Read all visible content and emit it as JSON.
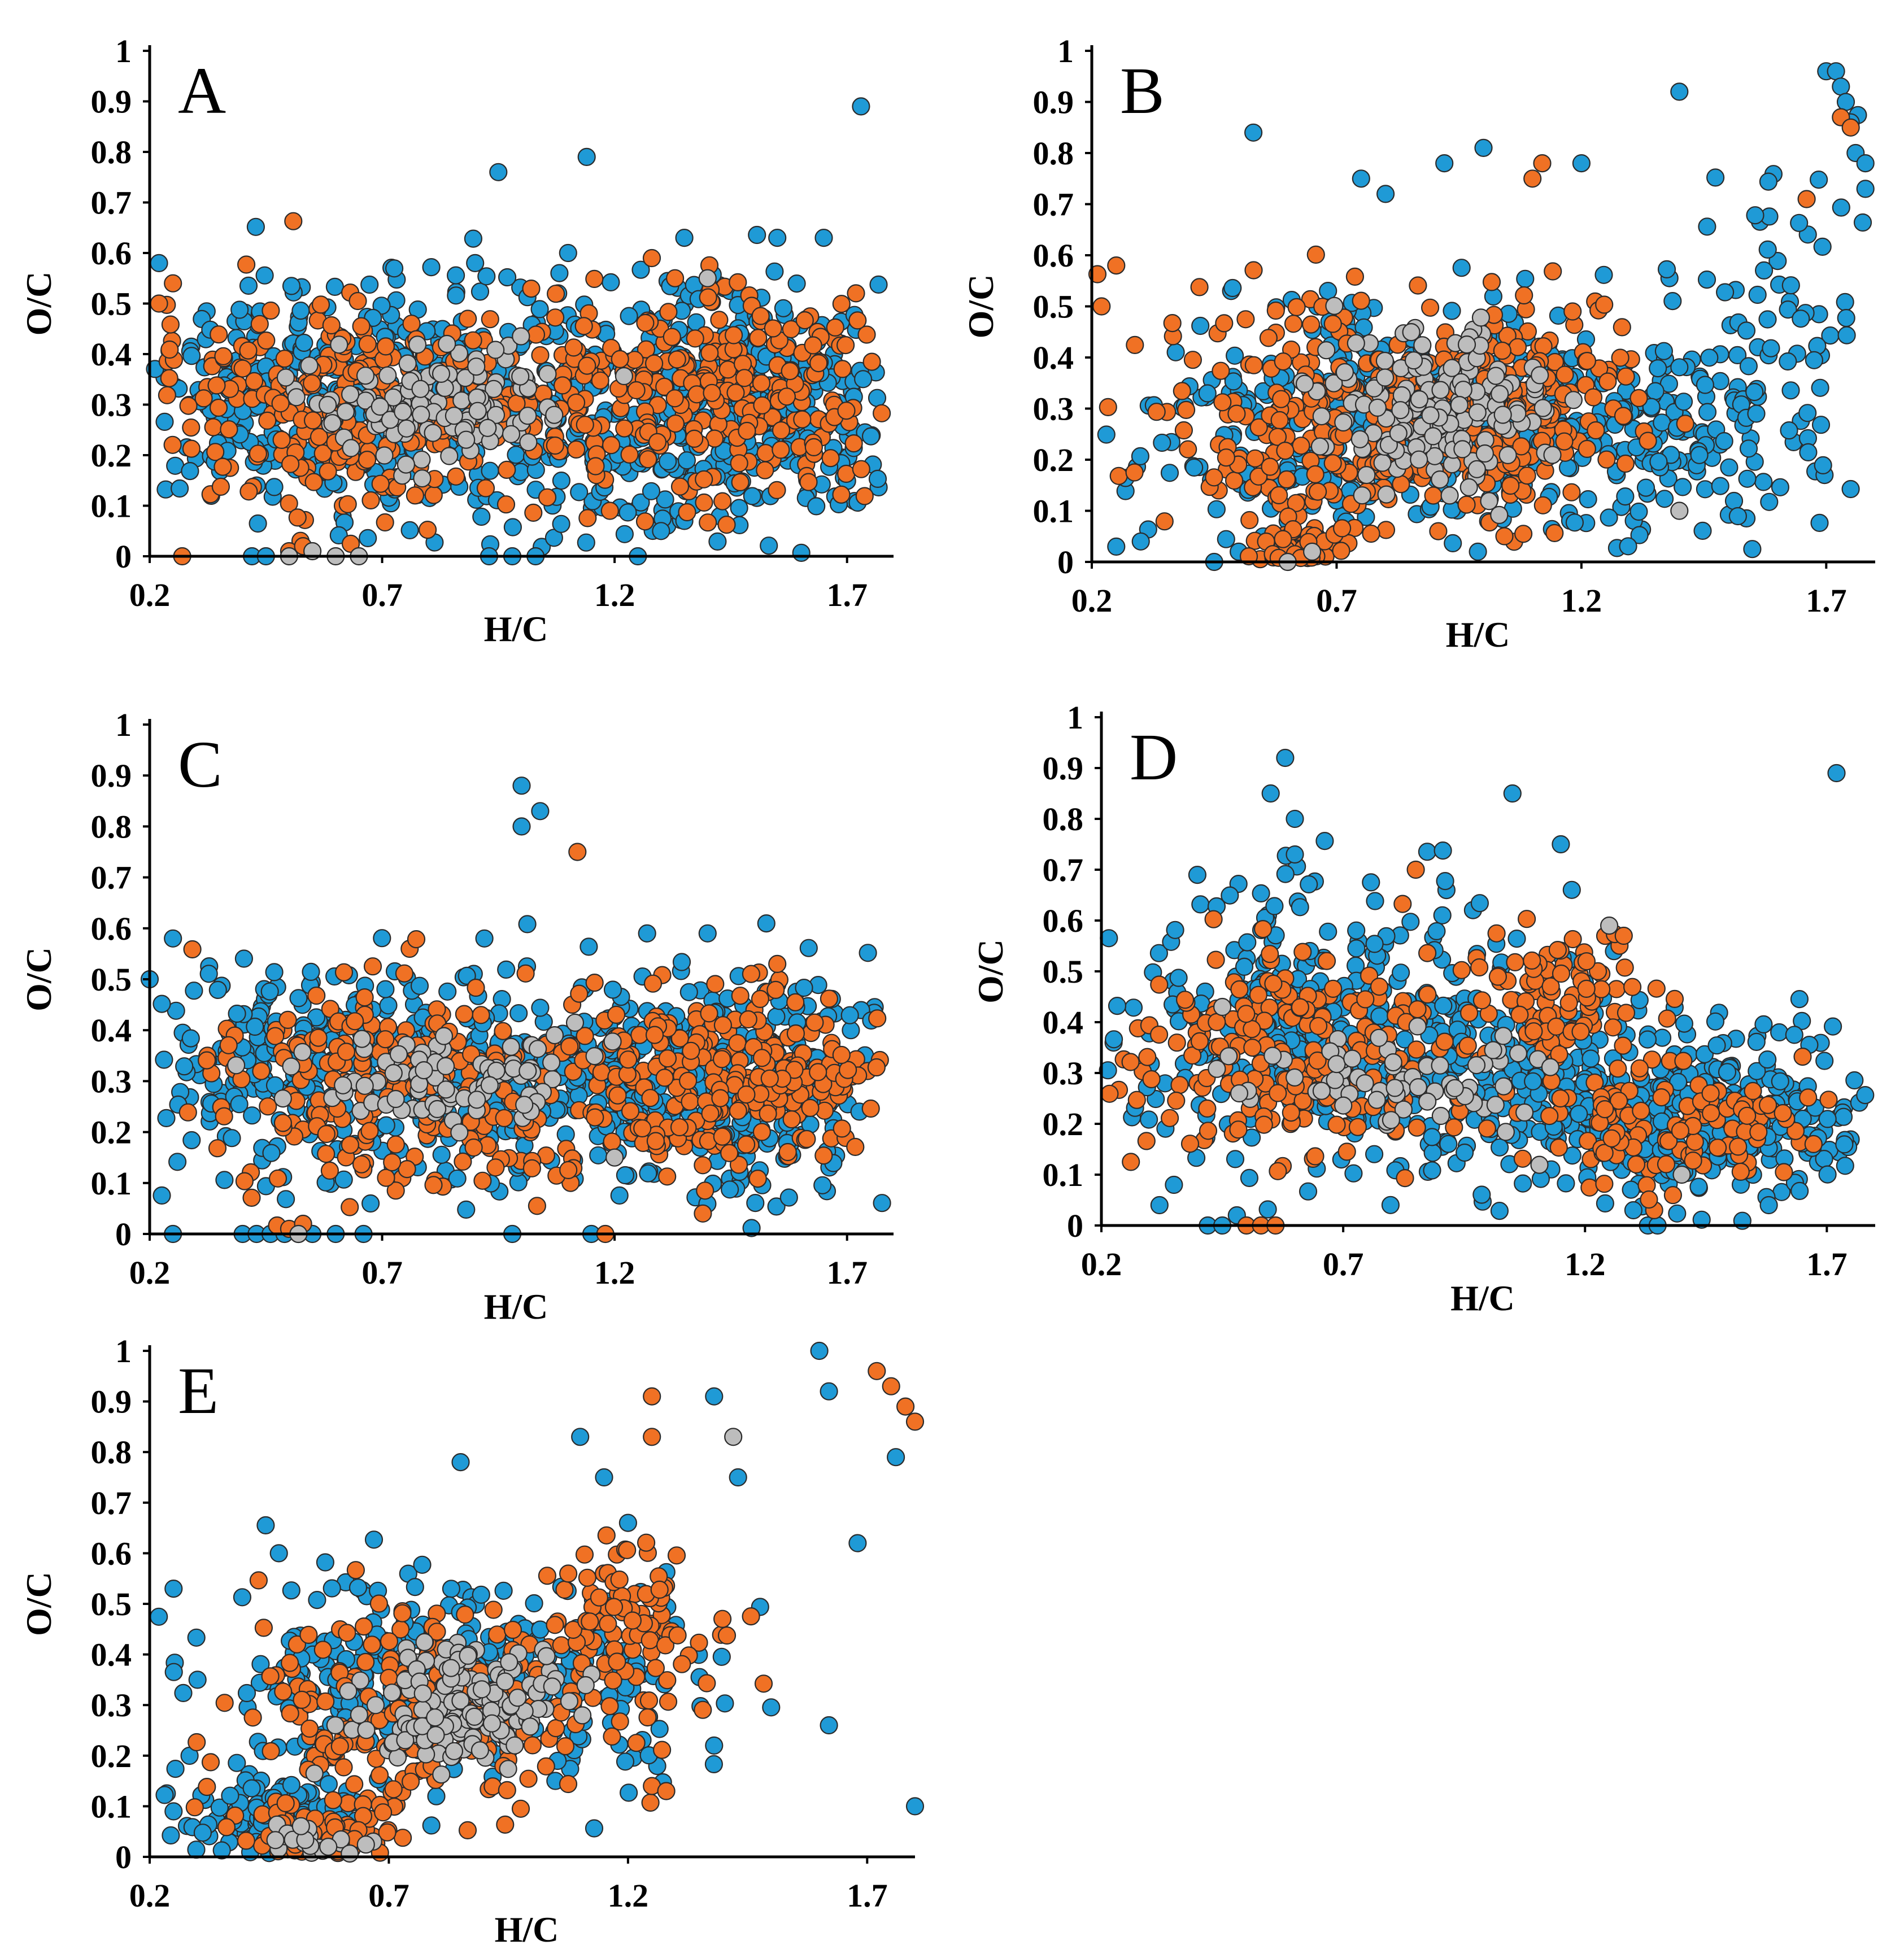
{
  "figure": {
    "colors": {
      "blue": "#1f9ad6",
      "orange": "#f07124",
      "gray": "#bdbdbd",
      "outline": "#2b2b2b",
      "axis": "#000000"
    }
  },
  "chart_data": [
    {
      "type": "scatter",
      "panel": "A",
      "xlabel": "H/C",
      "ylabel": "O/C",
      "xlim": [
        0.2,
        1.8
      ],
      "ylim": [
        0,
        1
      ],
      "xticks": [
        "0.2",
        "0.7",
        "1.2",
        "1.7"
      ],
      "yticks": [
        "0",
        "0.1",
        "0.2",
        "0.3",
        "0.4",
        "0.5",
        "0.6",
        "0.7",
        "0.8",
        "0.9",
        "1"
      ],
      "series": [
        {
          "name": "blue",
          "color": "#1f9ad6",
          "clusters": [
            {
              "cx": 0.55,
              "cy": 0.32,
              "sx": 0.22,
              "sy": 0.11,
              "n": 320
            },
            {
              "cx": 1.5,
              "cy": 0.3,
              "sx": 0.18,
              "sy": 0.12,
              "n": 340
            },
            {
              "cx": 1.05,
              "cy": 0.3,
              "sx": 0.25,
              "sy": 0.12,
              "n": 220
            }
          ],
          "points": [
            [
              1.73,
              0.89
            ],
            [
              0.95,
              0.76
            ],
            [
              1.14,
              0.79
            ],
            [
              1.35,
              0.63
            ],
            [
              1.55,
              0.63
            ],
            [
              1.65,
              0.63
            ],
            [
              0.22,
              0.58
            ],
            [
              0.9,
              0.58
            ],
            [
              1.1,
              0.6
            ],
            [
              1.3,
              0.05
            ],
            [
              1.35,
              0.07
            ],
            [
              0.93,
              0.0
            ],
            [
              0.98,
              0.0
            ],
            [
              1.03,
              0.0
            ],
            [
              1.25,
              0.0
            ],
            [
              0.42,
              0.0
            ],
            [
              0.45,
              0.0
            ]
          ]
        },
        {
          "name": "orange",
          "color": "#f07124",
          "clusters": [
            {
              "cx": 0.6,
              "cy": 0.29,
              "sx": 0.2,
              "sy": 0.1,
              "n": 240
            },
            {
              "cx": 1.45,
              "cy": 0.32,
              "sx": 0.18,
              "sy": 0.11,
              "n": 220
            },
            {
              "cx": 1.0,
              "cy": 0.3,
              "sx": 0.2,
              "sy": 0.1,
              "n": 120
            }
          ],
          "points": [
            [
              0.22,
              0.5
            ],
            [
              0.25,
              0.54
            ],
            [
              1.28,
              0.59
            ],
            [
              1.33,
              0.55
            ],
            [
              0.27,
              0.0
            ],
            [
              0.5,
              0.01
            ],
            [
              0.53,
              0.02
            ]
          ]
        },
        {
          "name": "gray",
          "color": "#bdbdbd",
          "clusters": [
            {
              "cx": 0.82,
              "cy": 0.3,
              "sx": 0.15,
              "sy": 0.06,
              "n": 140
            }
          ],
          "points": [
            [
              0.5,
              0.0
            ],
            [
              0.55,
              0.01
            ],
            [
              0.6,
              0.0
            ],
            [
              0.65,
              0.0
            ],
            [
              1.4,
              0.55
            ]
          ]
        }
      ]
    },
    {
      "type": "scatter",
      "panel": "B",
      "xlabel": "H/C",
      "ylabel": "O/C",
      "xlim": [
        0.2,
        1.8
      ],
      "ylim": [
        0,
        1
      ],
      "xticks": [
        "0.2",
        "0.7",
        "1.2",
        "1.7"
      ],
      "yticks": [
        "0",
        "0.1",
        "0.2",
        "0.3",
        "0.4",
        "0.5",
        "0.6",
        "0.7",
        "0.8",
        "0.9",
        "1"
      ],
      "series": [
        {
          "name": "blue",
          "color": "#1f9ad6",
          "clusters": [
            {
              "cx": 0.8,
              "cy": 0.28,
              "sx": 0.25,
              "sy": 0.11,
              "n": 380
            },
            {
              "cx": 1.25,
              "cy": 0.25,
              "sx": 0.2,
              "sy": 0.1,
              "n": 180
            },
            {
              "cx": 1.6,
              "cy": 0.45,
              "sx": 0.12,
              "sy": 0.18,
              "n": 80
            }
          ],
          "points": [
            [
              0.53,
              0.84
            ],
            [
              1.0,
              0.81
            ],
            [
              1.4,
              0.92
            ],
            [
              1.7,
              0.96
            ],
            [
              1.72,
              0.96
            ],
            [
              1.73,
              0.93
            ],
            [
              1.74,
              0.9
            ],
            [
              1.75,
              0.86
            ],
            [
              1.76,
              0.8
            ],
            [
              1.78,
              0.78
            ],
            [
              1.78,
              0.73
            ],
            [
              0.75,
              0.75
            ],
            [
              0.8,
              0.72
            ],
            [
              0.92,
              0.78
            ],
            [
              1.2,
              0.78
            ],
            [
              0.25,
              0.03
            ],
            [
              0.3,
              0.04
            ],
            [
              0.45,
              0.0
            ],
            [
              0.5,
              0.02
            ],
            [
              0.55,
              0.05
            ],
            [
              0.6,
              0.08
            ],
            [
              0.65,
              0.11
            ],
            [
              0.7,
              0.12
            ]
          ]
        },
        {
          "name": "orange",
          "color": "#f07124",
          "clusters": [
            {
              "cx": 0.75,
              "cy": 0.28,
              "sx": 0.2,
              "sy": 0.11,
              "n": 300
            },
            {
              "cx": 1.1,
              "cy": 0.32,
              "sx": 0.12,
              "sy": 0.1,
              "n": 120
            },
            {
              "cx": 0.62,
              "cy": 0.03,
              "sx": 0.05,
              "sy": 0.03,
              "n": 70
            }
          ],
          "points": [
            [
              0.25,
              0.58
            ],
            [
              0.22,
              0.5
            ],
            [
              1.12,
              0.78
            ],
            [
              1.1,
              0.75
            ],
            [
              1.66,
              0.71
            ],
            [
              1.73,
              0.87
            ],
            [
              1.75,
              0.85
            ]
          ]
        },
        {
          "name": "gray",
          "color": "#bdbdbd",
          "clusters": [
            {
              "cx": 0.9,
              "cy": 0.3,
              "sx": 0.12,
              "sy": 0.07,
              "n": 170
            }
          ],
          "points": [
            [
              0.65,
              0.02
            ],
            [
              0.6,
              0.0
            ],
            [
              1.4,
              0.1
            ]
          ]
        }
      ]
    },
    {
      "type": "scatter",
      "panel": "C",
      "xlabel": "H/C",
      "ylabel": "O/C",
      "xlim": [
        0.2,
        1.8
      ],
      "ylim": [
        0,
        1
      ],
      "xticks": [
        "0.2",
        "0.7",
        "1.2",
        "1.7"
      ],
      "yticks": [
        "0",
        "0.1",
        "0.2",
        "0.3",
        "0.4",
        "0.5",
        "0.6",
        "0.7",
        "0.8",
        "0.9",
        "1"
      ],
      "series": [
        {
          "name": "blue",
          "color": "#1f9ad6",
          "clusters": [
            {
              "cx": 0.55,
              "cy": 0.33,
              "sx": 0.2,
              "sy": 0.1,
              "n": 260
            },
            {
              "cx": 1.45,
              "cy": 0.28,
              "sx": 0.2,
              "sy": 0.11,
              "n": 300
            },
            {
              "cx": 1.05,
              "cy": 0.28,
              "sx": 0.2,
              "sy": 0.11,
              "n": 200
            }
          ],
          "points": [
            [
              1.0,
              0.88
            ],
            [
              1.04,
              0.83
            ],
            [
              1.0,
              0.8
            ],
            [
              0.2,
              0.5
            ],
            [
              0.25,
              0.58
            ],
            [
              0.92,
              0.58
            ],
            [
              1.27,
              0.59
            ],
            [
              1.4,
              0.59
            ],
            [
              0.25,
              0.0
            ],
            [
              0.4,
              0.0
            ],
            [
              0.43,
              0.0
            ],
            [
              0.46,
              0.0
            ],
            [
              0.49,
              0.0
            ],
            [
              0.52,
              0.0
            ],
            [
              0.55,
              0.0
            ],
            [
              0.6,
              0.0
            ],
            [
              0.66,
              0.0
            ],
            [
              0.98,
              0.0
            ],
            [
              1.15,
              0.0
            ]
          ]
        },
        {
          "name": "orange",
          "color": "#f07124",
          "clusters": [
            {
              "cx": 0.75,
              "cy": 0.3,
              "sx": 0.22,
              "sy": 0.1,
              "n": 250
            },
            {
              "cx": 1.45,
              "cy": 0.3,
              "sx": 0.18,
              "sy": 0.1,
              "n": 250
            }
          ],
          "points": [
            [
              1.12,
              0.75
            ],
            [
              1.55,
              0.53
            ],
            [
              0.5,
              0.01
            ],
            [
              0.53,
              0.02
            ],
            [
              1.18,
              0.0
            ]
          ]
        },
        {
          "name": "gray",
          "color": "#bdbdbd",
          "clusters": [
            {
              "cx": 0.85,
              "cy": 0.3,
              "sx": 0.15,
              "sy": 0.05,
              "n": 90
            }
          ],
          "points": [
            [
              0.52,
              0.0
            ],
            [
              1.2,
              0.15
            ]
          ]
        }
      ]
    },
    {
      "type": "scatter",
      "panel": "D",
      "xlabel": "H/C",
      "ylabel": "O/C",
      "xlim": [
        0.2,
        1.8
      ],
      "ylim": [
        0,
        1
      ],
      "xticks": [
        "0.2",
        "0.7",
        "1.2",
        "1.7"
      ],
      "yticks": [
        "0",
        "0.1",
        "0.2",
        "0.3",
        "0.4",
        "0.5",
        "0.6",
        "0.7",
        "0.8",
        "0.9",
        "1"
      ],
      "series": [
        {
          "name": "blue",
          "color": "#1f9ad6",
          "clusters": [
            {
              "cx": 0.7,
              "cy": 0.4,
              "sx": 0.22,
              "sy": 0.14,
              "n": 360
            },
            {
              "cx": 1.45,
              "cy": 0.22,
              "sx": 0.2,
              "sy": 0.08,
              "n": 320
            },
            {
              "cx": 1.1,
              "cy": 0.28,
              "sx": 0.15,
              "sy": 0.1,
              "n": 140
            }
          ],
          "points": [
            [
              0.58,
              0.92
            ],
            [
              0.55,
              0.85
            ],
            [
              0.6,
              0.8
            ],
            [
              1.05,
              0.85
            ],
            [
              1.72,
              0.89
            ],
            [
              1.15,
              0.75
            ],
            [
              0.6,
              0.73
            ],
            [
              0.32,
              0.04
            ],
            [
              0.35,
              0.08
            ],
            [
              0.42,
              0.0
            ],
            [
              0.45,
              0.0
            ],
            [
              0.48,
              0.02
            ],
            [
              1.3,
              0.03
            ],
            [
              1.33,
              0.0
            ],
            [
              1.35,
              0.0
            ],
            [
              1.58,
              0.04
            ]
          ]
        },
        {
          "name": "orange",
          "color": "#f07124",
          "clusters": [
            {
              "cx": 0.6,
              "cy": 0.33,
              "sx": 0.18,
              "sy": 0.1,
              "n": 220
            },
            {
              "cx": 1.15,
              "cy": 0.45,
              "sx": 0.1,
              "sy": 0.07,
              "n": 90
            },
            {
              "cx": 1.4,
              "cy": 0.2,
              "sx": 0.15,
              "sy": 0.06,
              "n": 120
            }
          ],
          "points": [
            [
              0.85,
              0.7
            ],
            [
              1.28,
              0.57
            ],
            [
              0.5,
              0.0
            ],
            [
              0.53,
              0.0
            ],
            [
              0.56,
              0.0
            ]
          ]
        },
        {
          "name": "gray",
          "color": "#bdbdbd",
          "clusters": [
            {
              "cx": 0.85,
              "cy": 0.28,
              "sx": 0.18,
              "sy": 0.05,
              "n": 70
            }
          ],
          "points": [
            [
              1.25,
              0.59
            ],
            [
              0.45,
              0.43
            ],
            [
              1.4,
              0.1
            ]
          ]
        }
      ]
    },
    {
      "type": "scatter",
      "panel": "E",
      "xlabel": "H/C",
      "ylabel": "O/C",
      "xlim": [
        0.2,
        1.8
      ],
      "ylim": [
        0,
        1
      ],
      "xticks": [
        "0.2",
        "0.7",
        "1.2",
        "1.7"
      ],
      "yticks": [
        "0",
        "0.1",
        "0.2",
        "0.3",
        "0.4",
        "0.5",
        "0.6",
        "0.7",
        "0.8",
        "0.9",
        "1"
      ],
      "series": [
        {
          "name": "blue",
          "color": "#1f9ad6",
          "clusters": [
            {
              "cx": 0.7,
              "cy": 0.35,
              "sx": 0.18,
              "sy": 0.1,
              "n": 200
            },
            {
              "cx": 0.45,
              "cy": 0.08,
              "sx": 0.1,
              "sy": 0.04,
              "n": 120
            },
            {
              "cx": 1.1,
              "cy": 0.35,
              "sx": 0.15,
              "sy": 0.1,
              "n": 120
            }
          ],
          "points": [
            [
              1.6,
              1.0
            ],
            [
              0.25,
              0.53
            ],
            [
              0.3,
              0.35
            ],
            [
              0.25,
              0.09
            ],
            [
              1.1,
              0.83
            ],
            [
              1.38,
              0.91
            ],
            [
              1.62,
              0.92
            ],
            [
              1.68,
              0.62
            ],
            [
              1.76,
              0.79
            ],
            [
              1.8,
              0.1
            ],
            [
              1.62,
              0.26
            ],
            [
              0.85,
              0.78
            ],
            [
              1.2,
              0.66
            ],
            [
              1.43,
              0.75
            ],
            [
              1.38,
              0.22
            ],
            [
              0.47,
              0.6
            ],
            [
              1.15,
              0.75
            ]
          ]
        },
        {
          "name": "orange",
          "color": "#f07124",
          "clusters": [
            {
              "cx": 0.75,
              "cy": 0.28,
              "sx": 0.18,
              "sy": 0.1,
              "n": 220
            },
            {
              "cx": 0.55,
              "cy": 0.05,
              "sx": 0.08,
              "sy": 0.03,
              "n": 80
            },
            {
              "cx": 1.2,
              "cy": 0.45,
              "sx": 0.1,
              "sy": 0.08,
              "n": 100
            }
          ],
          "points": [
            [
              1.25,
              0.91
            ],
            [
              1.25,
              0.83
            ],
            [
              1.25,
              0.14
            ],
            [
              1.28,
              0.13
            ],
            [
              1.72,
              0.96
            ],
            [
              1.75,
              0.93
            ],
            [
              1.78,
              0.89
            ],
            [
              1.8,
              0.86
            ]
          ]
        },
        {
          "name": "gray",
          "color": "#bdbdbd",
          "clusters": [
            {
              "cx": 0.85,
              "cy": 0.3,
              "sx": 0.12,
              "sy": 0.06,
              "n": 150
            },
            {
              "cx": 0.55,
              "cy": 0.02,
              "sx": 0.06,
              "sy": 0.02,
              "n": 30
            }
          ],
          "points": [
            [
              1.42,
              0.83
            ]
          ]
        }
      ]
    }
  ]
}
